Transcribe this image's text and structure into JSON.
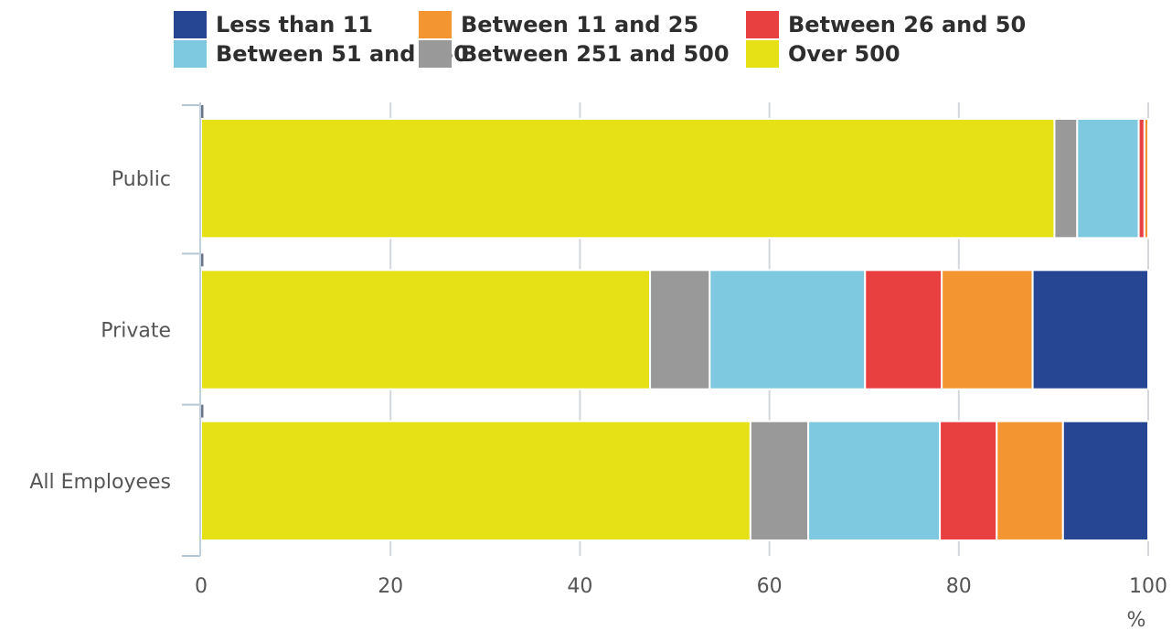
{
  "chart_data": {
    "type": "bar",
    "orientation": "horizontal",
    "stacked": true,
    "categories": [
      "Public",
      "Private",
      "All Employees"
    ],
    "series": [
      {
        "name": "Over 500",
        "color": "#e6e016",
        "values": [
          90.1,
          47.4,
          58.0
        ]
      },
      {
        "name": "Between 251 and 500",
        "color": "#999999",
        "values": [
          2.4,
          6.3,
          6.1
        ]
      },
      {
        "name": "Between 51 and 250",
        "color": "#7ec9e0",
        "values": [
          6.5,
          16.4,
          13.9
        ]
      },
      {
        "name": "Between 26 and 50",
        "color": "#e84040",
        "values": [
          0.6,
          8.1,
          6.0
        ]
      },
      {
        "name": "Between 11 and 25",
        "color": "#f39530",
        "values": [
          0.4,
          9.6,
          7.0
        ]
      },
      {
        "name": "Less than 11",
        "color": "#264593",
        "values": [
          0.0,
          12.2,
          9.0
        ]
      }
    ],
    "legend_order": [
      "Less than 11",
      "Between 11 and 25",
      "Between 26 and 50",
      "Between 51 and 250",
      "Between 251 and 500",
      "Over 500"
    ],
    "xlim": [
      0,
      100
    ],
    "xticks": [
      0,
      20,
      40,
      60,
      80,
      100
    ],
    "xunit": "%",
    "grid": true,
    "legend_position": "top"
  }
}
